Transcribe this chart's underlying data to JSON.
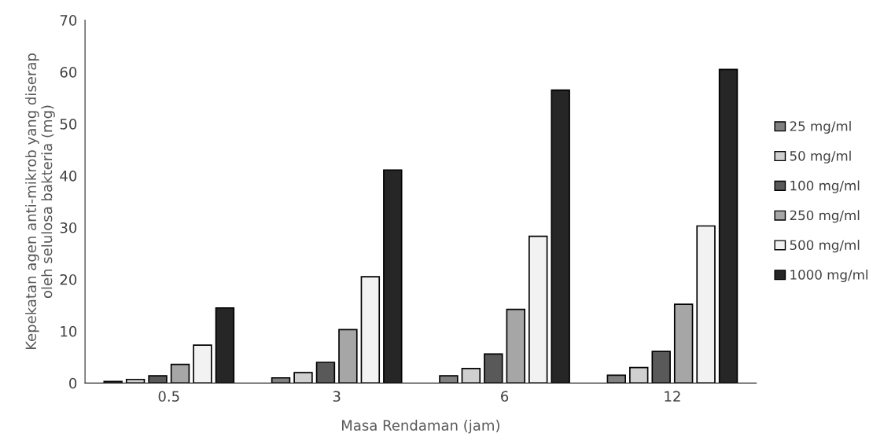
{
  "chart_data": {
    "type": "bar",
    "xlabel": "Masa Rendaman (jam)",
    "ylabel": "Kepekatan agen anti-mikrob yang diserap\noleh selulosa bakteria (mg)",
    "categories": [
      "0.5",
      "3",
      "6",
      "12"
    ],
    "series": [
      {
        "name": "25 mg/ml",
        "color": "#808080",
        "values": [
          0.3,
          1.0,
          1.4,
          1.5
        ]
      },
      {
        "name": "50 mg/ml",
        "color": "#d0d0d0",
        "values": [
          0.7,
          2.0,
          2.8,
          3.0
        ]
      },
      {
        "name": "100 mg/ml",
        "color": "#595959",
        "values": [
          1.4,
          4.0,
          5.6,
          6.1
        ]
      },
      {
        "name": "250 mg/ml",
        "color": "#a6a6a6",
        "values": [
          3.6,
          10.3,
          14.2,
          15.2
        ]
      },
      {
        "name": "500 mg/ml",
        "color": "#f2f2f2",
        "values": [
          7.3,
          20.5,
          28.3,
          30.3
        ]
      },
      {
        "name": "1000 mg/ml",
        "color": "#262626",
        "values": [
          14.5,
          41.1,
          56.5,
          60.5
        ]
      }
    ],
    "ylim": [
      0,
      70
    ],
    "yticks": [
      0,
      10,
      20,
      30,
      40,
      50,
      60,
      70
    ],
    "grid": false,
    "legend": "right"
  }
}
